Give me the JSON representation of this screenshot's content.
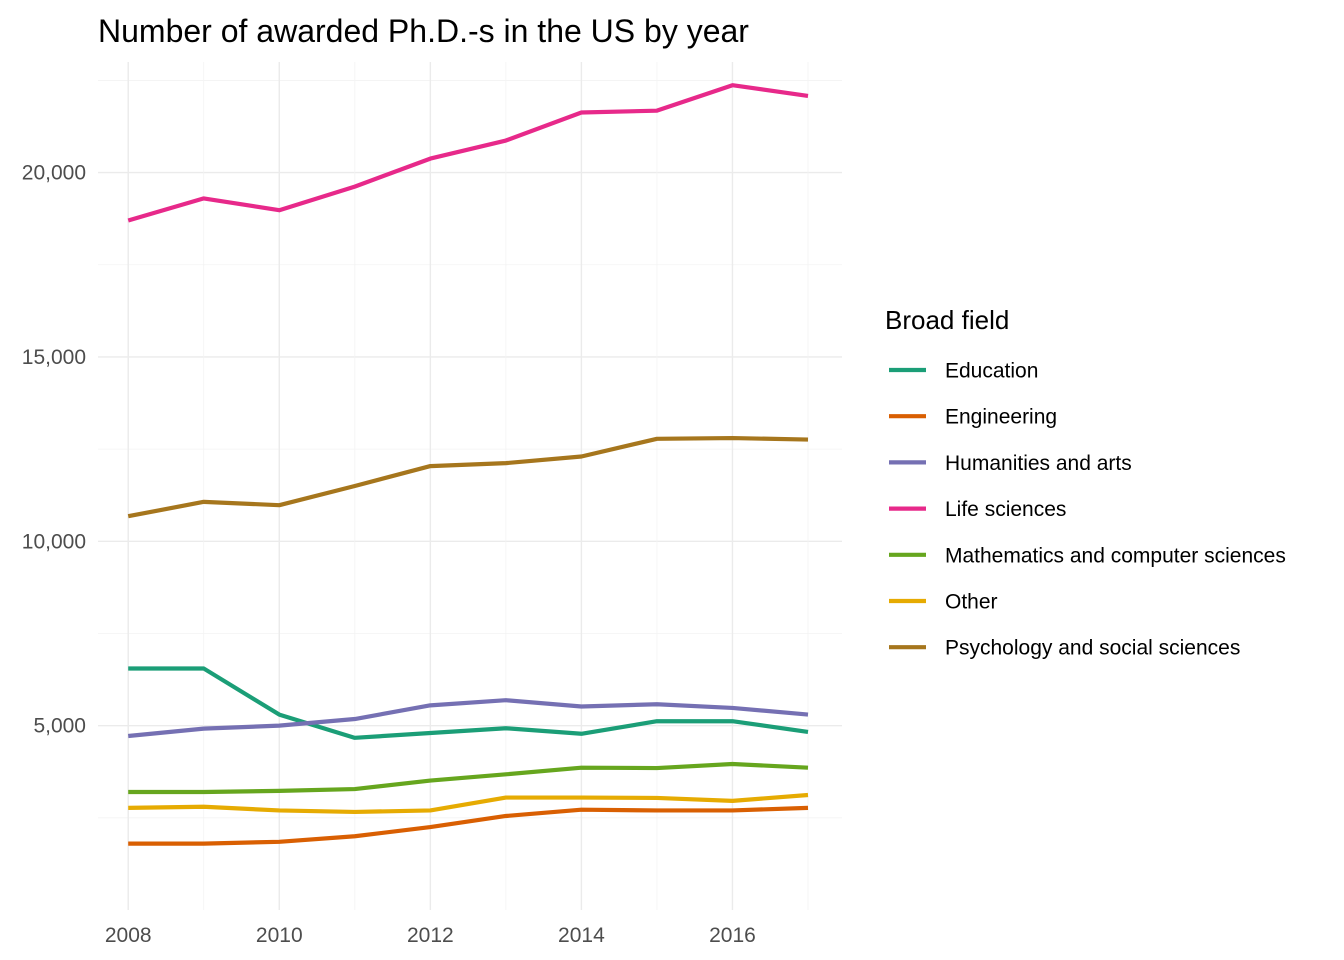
{
  "chart_data": {
    "type": "line",
    "title": "Number of awarded Ph.D.-s in the US by year",
    "xlabel": "",
    "ylabel": "",
    "x": [
      2008,
      2009,
      2010,
      2011,
      2012,
      2013,
      2014,
      2015,
      2016,
      2017
    ],
    "x_ticks": [
      2008,
      2010,
      2012,
      2014,
      2016
    ],
    "x_tick_labels": [
      "2008",
      "2010",
      "2012",
      "2014",
      "2016"
    ],
    "y_ticks": [
      5000,
      10000,
      15000,
      20000
    ],
    "y_tick_labels": [
      "5,000",
      "10,000",
      "15,000",
      "20,000"
    ],
    "xlim": [
      2007.6,
      2017.45
    ],
    "ylim": [
      0,
      23000
    ],
    "grid": true,
    "legend": {
      "title": "Broad field",
      "position": "right"
    },
    "series": [
      {
        "name": "Education",
        "color": "#1b9e77",
        "values": [
          6550,
          6550,
          5300,
          4670,
          4800,
          4930,
          4780,
          5120,
          5120,
          4830
        ]
      },
      {
        "name": "Engineering",
        "color": "#d95f02",
        "values": [
          1800,
          1800,
          1850,
          2000,
          2250,
          2550,
          2720,
          2700,
          2700,
          2770
        ]
      },
      {
        "name": "Humanities and arts",
        "color": "#7570b3",
        "values": [
          4720,
          4920,
          5000,
          5180,
          5550,
          5690,
          5520,
          5580,
          5480,
          5300
        ]
      },
      {
        "name": "Life sciences",
        "color": "#e7298a",
        "values": [
          18700,
          19300,
          18980,
          19620,
          20380,
          20870,
          21630,
          21680,
          22370,
          22080
        ]
      },
      {
        "name": "Mathematics and computer sciences",
        "color": "#66a61e",
        "values": [
          3200,
          3200,
          3230,
          3280,
          3510,
          3680,
          3860,
          3850,
          3960,
          3860
        ]
      },
      {
        "name": "Other",
        "color": "#e6ab02",
        "values": [
          2770,
          2800,
          2700,
          2660,
          2700,
          3050,
          3050,
          3040,
          2960,
          3120
        ]
      },
      {
        "name": "Psychology and social sciences",
        "color": "#a6761d",
        "values": [
          10680,
          11070,
          10980,
          11500,
          12040,
          12120,
          12300,
          12780,
          12800,
          12760
        ]
      }
    ]
  }
}
